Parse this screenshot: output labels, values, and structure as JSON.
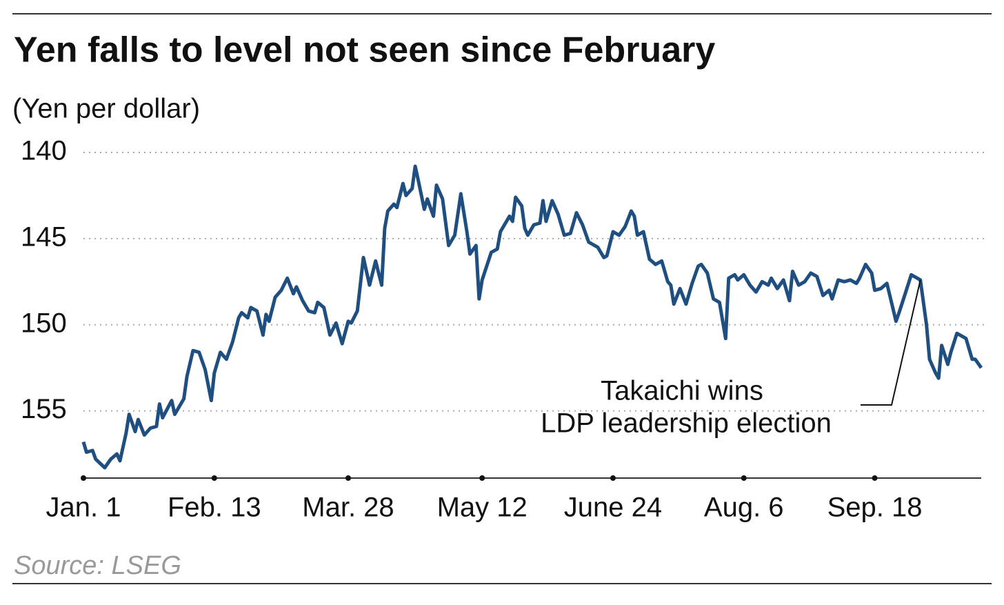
{
  "chart_data": {
    "type": "line",
    "title": "Yen falls to level not seen since February",
    "subtitle": "(Yen per dollar)",
    "source": "Source: LSEG",
    "xlim": [
      0,
      295
    ],
    "xticks": [
      {
        "value": 0,
        "label": "Jan. 1"
      },
      {
        "value": 43,
        "label": "Feb. 13"
      },
      {
        "value": 87,
        "label": "Mar. 28"
      },
      {
        "value": 131,
        "label": "May 12"
      },
      {
        "value": 174,
        "label": "June 24"
      },
      {
        "value": 217,
        "label": "Aug. 6"
      },
      {
        "value": 260,
        "label": "Sep. 18"
      }
    ],
    "ylim": [
      140,
      158.9
    ],
    "y_inverted": true,
    "yticks": [
      140,
      145,
      150,
      155
    ],
    "grid": true,
    "series": [
      {
        "name": "Yen per dollar",
        "color": "#1f4e80",
        "x": [
          0,
          1,
          3,
          4,
          7,
          9,
          11,
          12,
          14,
          15,
          17,
          18,
          20,
          22,
          24,
          25,
          26,
          29,
          30,
          33,
          34,
          36,
          38,
          40,
          42,
          43,
          45,
          47,
          49,
          51,
          52,
          54,
          55,
          57,
          59,
          60,
          61,
          63,
          65,
          67,
          69,
          70,
          72,
          74,
          76,
          77,
          79,
          81,
          83,
          85,
          87,
          88,
          90,
          92,
          94,
          96,
          98,
          99,
          100,
          102,
          103,
          105,
          106,
          108,
          109,
          110,
          112,
          113,
          115,
          116,
          118,
          120,
          122,
          124,
          126,
          127,
          129,
          130,
          131,
          134,
          136,
          137,
          140,
          141,
          142,
          144,
          145,
          146,
          148,
          150,
          151,
          152,
          154,
          156,
          158,
          160,
          162,
          164,
          166,
          169,
          171,
          172,
          174,
          176,
          178,
          180,
          181,
          182,
          184,
          186,
          188,
          190,
          192,
          193,
          194,
          196,
          198,
          200,
          202,
          203,
          205,
          207,
          209,
          211,
          212,
          214,
          215,
          217,
          219,
          221,
          223,
          225,
          226,
          228,
          230,
          232,
          233,
          235,
          237,
          239,
          241,
          243,
          245,
          246,
          248,
          250,
          252,
          254,
          255,
          257,
          259,
          260,
          262,
          264,
          267,
          268,
          270,
          272,
          275,
          277,
          278,
          280,
          281,
          282,
          284,
          285,
          287,
          290,
          292,
          293,
          295
        ],
        "values": [
          156.8,
          157.4,
          157.3,
          157.8,
          158.3,
          157.8,
          157.5,
          157.9,
          156.3,
          155.2,
          156.2,
          155.5,
          156.4,
          156.0,
          155.9,
          154.6,
          155.4,
          154.4,
          155.2,
          154.3,
          153.0,
          151.5,
          151.6,
          152.6,
          154.4,
          152.8,
          151.6,
          152.0,
          151.0,
          149.6,
          149.3,
          149.6,
          149.0,
          149.2,
          150.6,
          149.4,
          149.8,
          148.4,
          148.0,
          147.3,
          148.2,
          147.8,
          148.6,
          149.2,
          149.3,
          148.7,
          149.0,
          150.6,
          149.9,
          151.1,
          149.8,
          149.9,
          149.2,
          146.1,
          147.7,
          146.3,
          147.7,
          144.4,
          143.4,
          143.0,
          143.2,
          141.8,
          142.5,
          142.1,
          140.8,
          141.6,
          143.3,
          142.7,
          143.7,
          141.9,
          142.7,
          145.4,
          144.8,
          142.4,
          144.6,
          145.9,
          145.4,
          148.5,
          147.4,
          145.8,
          145.6,
          144.6,
          143.7,
          144.0,
          142.6,
          143.1,
          144.4,
          144.8,
          144.2,
          144.1,
          142.8,
          144.0,
          142.8,
          143.6,
          144.8,
          144.7,
          143.5,
          144.2,
          145.2,
          145.5,
          146.1,
          146.0,
          144.6,
          144.8,
          144.3,
          143.4,
          143.7,
          144.8,
          144.6,
          146.2,
          146.5,
          146.3,
          147.5,
          147.7,
          148.8,
          147.9,
          148.8,
          147.6,
          146.6,
          146.5,
          147.0,
          148.5,
          148.7,
          150.8,
          147.3,
          147.1,
          147.4,
          147.1,
          147.7,
          148.1,
          147.5,
          147.7,
          147.3,
          147.9,
          147.4,
          148.6,
          146.9,
          147.7,
          147.5,
          147.0,
          147.2,
          148.3,
          148.0,
          148.5,
          147.4,
          147.5,
          147.4,
          147.6,
          147.3,
          146.5,
          147.0,
          148.0,
          147.9,
          147.6,
          149.8,
          149.3,
          148.2,
          147.1,
          147.4,
          150.0,
          152.0,
          152.8,
          153.1,
          151.2,
          152.3,
          151.6,
          150.5,
          150.8,
          152.0,
          152.0,
          152.5
        ]
      }
    ],
    "annotation": {
      "lines": [
        "Takaichi wins",
        "LDP leadership election"
      ],
      "x": 275,
      "y": 147.4
    }
  }
}
